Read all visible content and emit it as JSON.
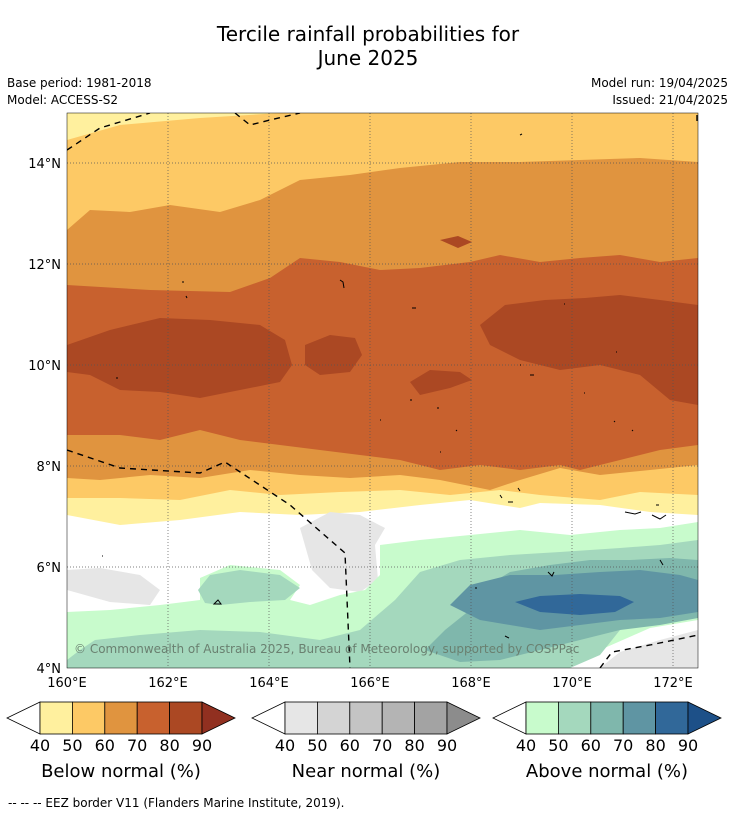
{
  "title_line1": "Tercile rainfall probabilities for",
  "title_line2": "June 2025",
  "meta": {
    "base_period": "Base period: 1981-2018",
    "model": "Model: ACCESS-S2",
    "model_run": "Model run: 19/04/2025",
    "issued": "Issued: 21/04/2025"
  },
  "axes": {
    "x_ticks": [
      "160°E",
      "162°E",
      "164°E",
      "166°E",
      "168°E",
      "170°E",
      "172°E"
    ],
    "y_ticks": [
      "14°N",
      "12°N",
      "10°N",
      "8°N",
      "6°N",
      "4°N"
    ]
  },
  "copyright": "© Commonwealth of Australia 2025, Bureau of Meteorology, supported by COSPPac",
  "colorbars": {
    "below": {
      "label": "Below normal (%)",
      "ticks": [
        "40",
        "50",
        "60",
        "70",
        "80",
        "90"
      ],
      "colors": [
        "#fff09e",
        "#fdc965",
        "#e0943f",
        "#c8612e",
        "#ab4823",
        "#913020"
      ]
    },
    "near": {
      "label": "Near normal (%)",
      "ticks": [
        "40",
        "50",
        "60",
        "70",
        "80",
        "90"
      ],
      "colors": [
        "#e6e6e6",
        "#d4d4d4",
        "#c4c4c4",
        "#b4b4b4",
        "#a3a3a3",
        "#8c8c8c"
      ]
    },
    "above": {
      "label": "Above normal (%)",
      "ticks": [
        "40",
        "50",
        "60",
        "70",
        "80",
        "90"
      ],
      "colors": [
        "#c8fbcc",
        "#a4d8bd",
        "#7fb7ac",
        "#5f95a3",
        "#316899",
        "#1d5088"
      ]
    }
  },
  "footer": "--  --  -- EEZ border V11 (Flanders Marine Institute, 2019)."
}
